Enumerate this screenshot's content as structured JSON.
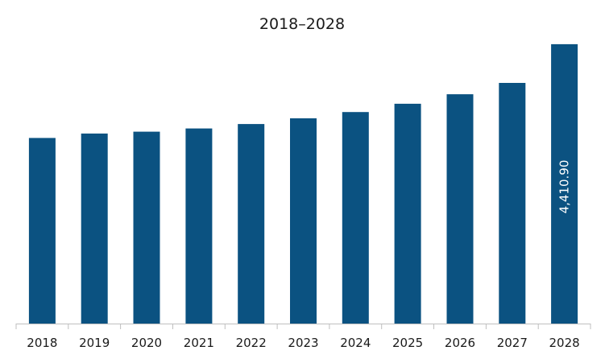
{
  "chart_data": {
    "type": "bar",
    "title": "2018–2028",
    "xlabel": "",
    "ylabel": "",
    "categories": [
      "2018",
      "2019",
      "2020",
      "2021",
      "2022",
      "2023",
      "2024",
      "2025",
      "2026",
      "2027",
      "2028"
    ],
    "values": [
      2930,
      3000,
      3030,
      3080,
      3150,
      3240,
      3340,
      3470,
      3620,
      3800,
      4410.9
    ],
    "data_labels": [
      {
        "category": "2028",
        "text": "4,410.90"
      }
    ],
    "ylim": [
      0,
      4600
    ],
    "grid": false,
    "legend": "none",
    "colors": {
      "bar": "#0b5281",
      "axis": "#bfbfbf",
      "text": "#1a1a1a",
      "data_label": "#ffffff"
    }
  }
}
